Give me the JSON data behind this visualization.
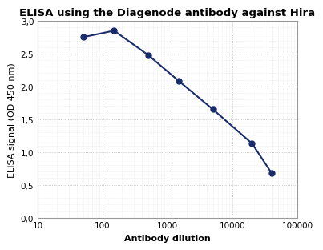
{
  "title": "ELISA using the Diagenode antibody against Hira",
  "xlabel": "Antibody dilution",
  "ylabel": "ELISA signal (OD 450 nm)",
  "x": [
    50,
    150,
    500,
    1500,
    5000,
    20000,
    40000
  ],
  "y": [
    2.75,
    2.85,
    2.48,
    2.08,
    1.65,
    1.13,
    0.68
  ],
  "line_color": "#1a2b6b",
  "marker_color": "#1a2b6b",
  "marker_size": 5,
  "line_width": 1.5,
  "ylim": [
    0.0,
    3.0
  ],
  "xlim": [
    10,
    100000
  ],
  "yticks": [
    0.0,
    0.5,
    1.0,
    1.5,
    2.0,
    2.5,
    3.0
  ],
  "ytick_labels": [
    "0,0",
    "0,5",
    "1,0",
    "1,5",
    "2,0",
    "2,5",
    "3,0"
  ],
  "xticks": [
    10,
    100,
    1000,
    10000,
    100000
  ],
  "xtick_labels": [
    "10",
    "100",
    "1000",
    "10000",
    "100000"
  ],
  "background_color": "#ffffff",
  "grid_major_color": "#bbbbbb",
  "grid_minor_color": "#dddddd",
  "title_fontsize": 9.5,
  "label_fontsize": 8,
  "tick_fontsize": 7.5
}
